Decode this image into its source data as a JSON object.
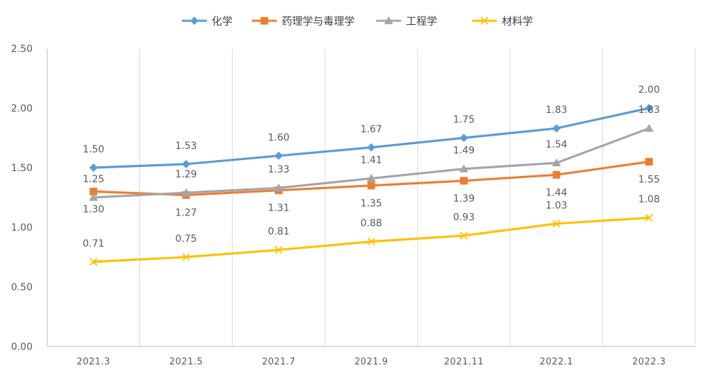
{
  "chart_data": {
    "type": "line",
    "title": "",
    "xlabel": "",
    "ylabel": "",
    "ylim": [
      0,
      2.5
    ],
    "yticks": [
      "0.00",
      "0.50",
      "1.00",
      "1.50",
      "2.00",
      "2.50"
    ],
    "categories": [
      "2021.3",
      "2021.5",
      "2021.7",
      "2021.9",
      "2021.11",
      "2022.1",
      "2022.3"
    ],
    "grid": "vertical",
    "legend": "top-center",
    "series": [
      {
        "name": "化学",
        "color": "#5B9BD5",
        "marker": "diamond",
        "values": [
          1.5,
          1.53,
          1.6,
          1.67,
          1.75,
          1.83,
          2.0
        ],
        "labels": [
          "1.50",
          "1.53",
          "1.60",
          "1.67",
          "1.75",
          "1.83",
          "2.00"
        ]
      },
      {
        "name": "药理学与毒理学",
        "color": "#ED7D31",
        "marker": "square",
        "values": [
          1.3,
          1.27,
          1.31,
          1.35,
          1.39,
          1.44,
          1.55
        ],
        "labels": [
          "1.30",
          "1.27",
          "1.31",
          "1.35",
          "1.39",
          "1.44",
          "1.55"
        ]
      },
      {
        "name": "工程学",
        "color": "#A5A5A5",
        "marker": "triangle",
        "values": [
          1.25,
          1.29,
          1.33,
          1.41,
          1.49,
          1.54,
          1.83
        ],
        "labels": [
          "1.25",
          "1.29",
          "1.33",
          "1.41",
          "1.49",
          "1.54",
          "1.83"
        ]
      },
      {
        "name": "材料学",
        "color": "#FFC000",
        "marker": "x",
        "values": [
          0.71,
          0.75,
          0.81,
          0.88,
          0.93,
          1.03,
          1.08
        ],
        "labels": [
          "0.71",
          "0.75",
          "0.81",
          "0.88",
          "0.93",
          "1.03",
          "1.08"
        ]
      }
    ]
  }
}
